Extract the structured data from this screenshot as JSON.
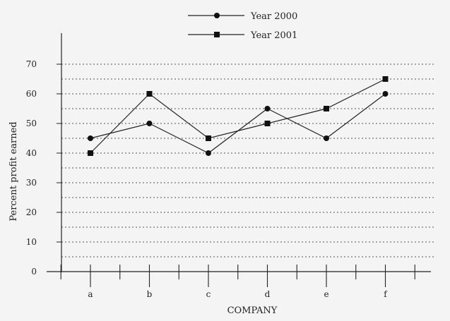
{
  "chart_data": {
    "type": "line",
    "xlabel": "COMPANY",
    "ylabel": "Percent profit earned",
    "categories": [
      "a",
      "b",
      "c",
      "d",
      "e",
      "f"
    ],
    "y_ticks": [
      0,
      10,
      20,
      30,
      40,
      50,
      60,
      70
    ],
    "ylim": [
      0,
      70
    ],
    "grid": "dotted horizontal lines every 5",
    "legend_position": "top-center",
    "series": [
      {
        "name": "Year 2000",
        "marker": "circle",
        "values": [
          45,
          50,
          40,
          55,
          45,
          60
        ]
      },
      {
        "name": "Year 2001",
        "marker": "square",
        "values": [
          40,
          60,
          45,
          50,
          55,
          65
        ]
      }
    ],
    "colors": {
      "line": "#222222",
      "grid": "#555555",
      "background": "#f4f4f4"
    }
  }
}
